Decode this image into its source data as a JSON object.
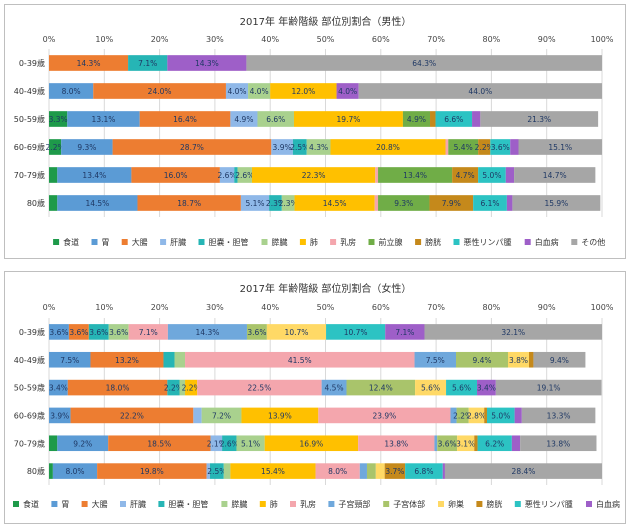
{
  "chart_data": [
    {
      "type": "bar",
      "stacked": "percent",
      "orientation": "horizontal",
      "title": "2017年 年齢階級 部位別割合（男性）",
      "xlim": [
        0,
        100
      ],
      "x_ticks": [
        "0%",
        "10%",
        "20%",
        "30%",
        "40%",
        "50%",
        "60%",
        "70%",
        "80%",
        "90%",
        "100%"
      ],
      "grid": true,
      "legend_position": "bottom",
      "categories": [
        "0-39歳",
        "40-49歳",
        "50-59歳",
        "60-69歳",
        "70-79歳",
        "80歳"
      ],
      "series": [
        {
          "name": "食道",
          "color": "#1e9a4a",
          "values": [
            0,
            0,
            3.3,
            2.2,
            1.5,
            1.5
          ],
          "labels": [
            "",
            "",
            "3.3%",
            "2.2%",
            "",
            ""
          ]
        },
        {
          "name": "胃",
          "color": "#5b9bd5",
          "values": [
            0,
            8.0,
            13.1,
            9.3,
            13.4,
            14.5
          ],
          "labels": [
            "",
            "8.0%",
            "13.1%",
            "9.3%",
            "13.4%",
            "14.5%"
          ]
        },
        {
          "name": "大腸",
          "color": "#ed7d31",
          "values": [
            14.3,
            24.0,
            16.4,
            28.7,
            16.0,
            18.7
          ],
          "labels": [
            "14.3%",
            "24.0%",
            "16.4%",
            "28.7%",
            "16.0%",
            "18.7%"
          ]
        },
        {
          "name": "肝臓",
          "color": "#8fb8e8",
          "values": [
            0,
            4.0,
            4.9,
            3.9,
            2.6,
            5.1
          ],
          "labels": [
            "",
            "4.0%",
            "4.9%",
            "3.9%",
            "2.6%",
            "5.1%"
          ]
        },
        {
          "name": "胆嚢・胆管",
          "color": "#26b5b5",
          "values": [
            7.1,
            0,
            0,
            2.5,
            0.6,
            2.3
          ],
          "labels": [
            "7.1%",
            "",
            "",
            "2.5%",
            "",
            "2.3%"
          ]
        },
        {
          "name": "膵臓",
          "color": "#a9d18e",
          "values": [
            0,
            4.0,
            6.6,
            4.3,
            2.6,
            2.3
          ],
          "labels": [
            "",
            "4.0%",
            "6.6%",
            "4.3%",
            "2.6%",
            "2.3%"
          ]
        },
        {
          "name": "肺",
          "color": "#ffc000",
          "values": [
            0,
            12.0,
            19.7,
            20.8,
            22.3,
            14.5
          ],
          "labels": [
            "",
            "12.0%",
            "19.7%",
            "20.8%",
            "22.3%",
            "14.5%"
          ]
        },
        {
          "name": "乳房",
          "color": "#f4a6ad",
          "values": [
            0,
            0,
            0,
            0.5,
            0.5,
            0.6
          ],
          "labels": [
            "",
            "",
            "",
            "",
            "",
            ""
          ]
        },
        {
          "name": "前立腺",
          "color": "#70ad47",
          "values": [
            0,
            0,
            4.9,
            5.4,
            13.4,
            9.3
          ],
          "labels": [
            "",
            "",
            "4.9%",
            "5.4%",
            "13.4%",
            "9.3%"
          ]
        },
        {
          "name": "膀胱",
          "color": "#c5891b",
          "values": [
            0,
            0,
            1.0,
            2.2,
            4.7,
            7.9
          ],
          "labels": [
            "",
            "",
            "",
            "2.2%",
            "4.7%",
            "7.9%"
          ]
        },
        {
          "name": "悪性リンパ腫",
          "color": "#2cc3c3",
          "values": [
            0,
            0,
            6.6,
            3.6,
            5.0,
            6.1
          ],
          "labels": [
            "",
            "",
            "6.6%",
            "3.6%",
            "5.0%",
            "6.1%"
          ]
        },
        {
          "name": "白血病",
          "color": "#9e5fc8",
          "values": [
            14.3,
            4.0,
            1.5,
            1.5,
            1.5,
            1.0
          ],
          "labels": [
            "14.3%",
            "4.0%",
            "",
            "",
            "",
            ""
          ]
        },
        {
          "name": "その他",
          "color": "#a6a6a6",
          "values": [
            64.3,
            44.0,
            21.3,
            15.1,
            14.7,
            15.9
          ],
          "labels": [
            "64.3%",
            "44.0%",
            "21.3%",
            "15.1%",
            "14.7%",
            "15.9%"
          ]
        }
      ]
    },
    {
      "type": "bar",
      "stacked": "percent",
      "orientation": "horizontal",
      "title": "2017年 年齢階級 部位別割合（女性）",
      "xlim": [
        0,
        100
      ],
      "x_ticks": [
        "0%",
        "10%",
        "20%",
        "30%",
        "40%",
        "50%",
        "60%",
        "70%",
        "80%",
        "90%",
        "100%"
      ],
      "grid": true,
      "legend_position": "bottom",
      "categories": [
        "0-39歳",
        "40-49歳",
        "50-59歳",
        "60-69歳",
        "70-79歳",
        "80歳"
      ],
      "series": [
        {
          "name": "食道",
          "color": "#1e9a4a",
          "values": [
            0,
            0,
            0,
            0,
            1.5,
            0.7
          ],
          "labels": [
            "",
            "",
            "",
            "",
            "",
            ""
          ]
        },
        {
          "name": "胃",
          "color": "#5b9bd5",
          "values": [
            3.6,
            7.5,
            3.4,
            3.9,
            9.2,
            8.0
          ],
          "labels": [
            "3.6%",
            "7.5%",
            "3.4%",
            "3.9%",
            "9.2%",
            "8.0%"
          ]
        },
        {
          "name": "大腸",
          "color": "#ed7d31",
          "values": [
            3.6,
            13.2,
            18.0,
            22.2,
            18.5,
            19.8
          ],
          "labels": [
            "3.6%",
            "13.2%",
            "18.0%",
            "22.2%",
            "18.5%",
            "19.8%"
          ]
        },
        {
          "name": "肝臓",
          "color": "#8fb8e8",
          "values": [
            0,
            0,
            0,
            1.5,
            2.1,
            0.6
          ],
          "labels": [
            "",
            "",
            "",
            "",
            "2.1%",
            ""
          ]
        },
        {
          "name": "胆嚢・胆管",
          "color": "#26b5b5",
          "values": [
            3.6,
            2.0,
            2.2,
            0,
            2.6,
            2.5
          ],
          "labels": [
            "3.6%",
            "",
            "2.2%",
            "",
            "2.6%",
            "2.5%"
          ]
        },
        {
          "name": "膵臓",
          "color": "#a9d18e",
          "values": [
            3.6,
            1.9,
            1.0,
            7.2,
            5.1,
            1.2
          ],
          "labels": [
            "3.6%",
            "",
            "",
            "7.2%",
            "5.1%",
            ""
          ]
        },
        {
          "name": "肺",
          "color": "#ffc000",
          "values": [
            0,
            0,
            2.2,
            13.9,
            16.9,
            15.4
          ],
          "labels": [
            "",
            "",
            "2.2%",
            "13.9%",
            "16.9%",
            "15.4%"
          ]
        },
        {
          "name": "乳房",
          "color": "#f4a6ad",
          "values": [
            7.1,
            41.5,
            22.5,
            23.9,
            13.8,
            8.0
          ],
          "labels": [
            "7.1%",
            "41.5%",
            "22.5%",
            "23.9%",
            "13.8%",
            "8.0%"
          ]
        },
        {
          "name": "子宮頸部",
          "color": "#6fa8dc",
          "values": [
            14.3,
            7.5,
            4.5,
            1.1,
            0.5,
            1.3
          ],
          "labels": [
            "14.3%",
            "7.5%",
            "4.5%",
            "",
            "",
            ""
          ]
        },
        {
          "name": "子宮体部",
          "color": "#a9c46b",
          "values": [
            3.6,
            9.4,
            12.4,
            2.2,
            3.6,
            1.6
          ],
          "labels": [
            "3.6%",
            "9.4%",
            "12.4%",
            "2.2%",
            "3.6%",
            ""
          ]
        },
        {
          "name": "卵巣",
          "color": "#ffd966",
          "values": [
            10.7,
            3.8,
            5.6,
            2.8,
            3.1,
            1.6
          ],
          "labels": [
            "10.7%",
            "3.8%",
            "5.6%",
            "2.8%",
            "3.1%",
            ""
          ]
        },
        {
          "name": "膀胱",
          "color": "#c5891b",
          "values": [
            0,
            0.8,
            0,
            0.5,
            0.6,
            3.7
          ],
          "labels": [
            "",
            "",
            "",
            "",
            "",
            "3.7%"
          ]
        },
        {
          "name": "悪性リンパ腫",
          "color": "#2cc3c3",
          "values": [
            10.7,
            0,
            5.6,
            5.0,
            6.2,
            6.8
          ],
          "labels": [
            "10.7%",
            "",
            "5.6%",
            "5.0%",
            "6.2%",
            "6.8%"
          ]
        },
        {
          "name": "白血病",
          "color": "#9e5fc8",
          "values": [
            7.1,
            0,
            3.4,
            1.3,
            1.5,
            0.4
          ],
          "labels": [
            "7.1%",
            "",
            "3.4%",
            "",
            "",
            ""
          ]
        },
        {
          "name": "その他",
          "color": "#a6a6a6",
          "values": [
            32.1,
            9.4,
            19.1,
            13.3,
            13.8,
            28.4
          ],
          "labels": [
            "32.1%",
            "9.4%",
            "19.1%",
            "13.3%",
            "13.8%",
            "28.4%"
          ]
        }
      ]
    }
  ]
}
